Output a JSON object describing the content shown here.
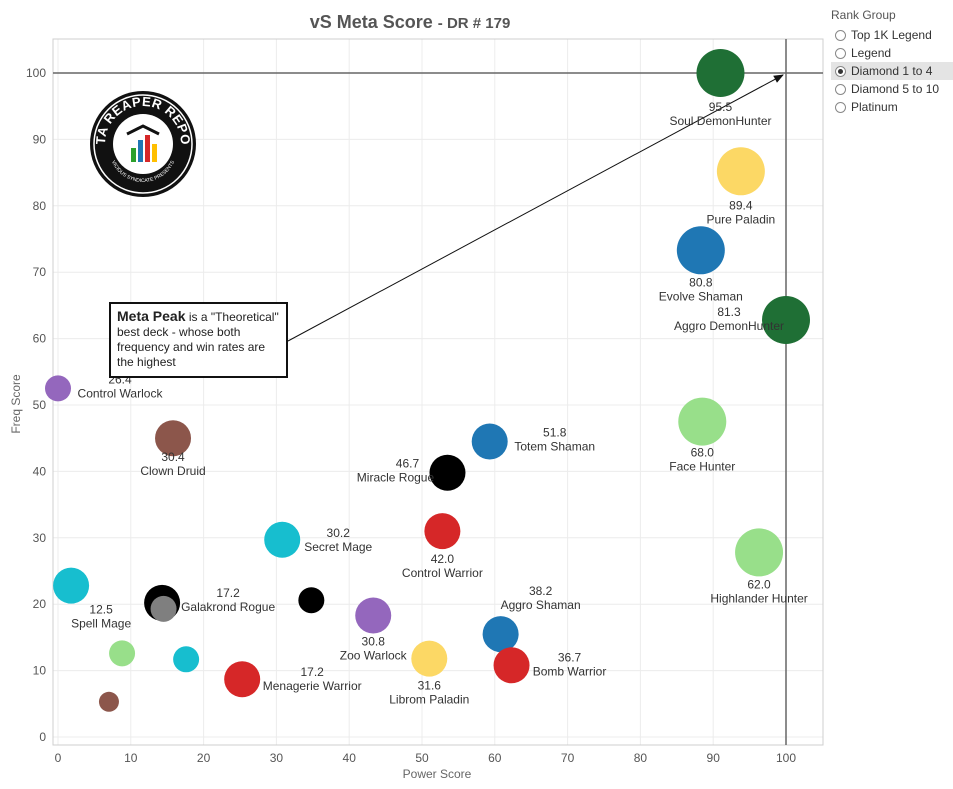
{
  "title": {
    "main": "vS Meta Score",
    "sub": "DR # 179"
  },
  "legend": {
    "title": "Rank Group",
    "items": [
      {
        "label": "Top 1K Legend",
        "selected": false
      },
      {
        "label": "Legend",
        "selected": false
      },
      {
        "label": "Diamond 1 to 4",
        "selected": true
      },
      {
        "label": "Diamond 5 to 10",
        "selected": false
      },
      {
        "label": "Platinum",
        "selected": false
      }
    ]
  },
  "annotation": {
    "heading": "Meta Peak",
    "text": "is a \"Theoretical\" best deck - whose both frequency and win rates are the highest",
    "arrow_target": [
      100,
      100
    ]
  },
  "logo": {
    "text_top": "DATA REAPER REPORT",
    "text_bottom": "VICIOUS SYNDICATE PRESENTS"
  },
  "chart_data": {
    "type": "scatter",
    "title": "vS Meta Score - DR # 179",
    "xlabel": "Power Score",
    "ylabel": "Freq Score",
    "xlim": [
      0,
      105
    ],
    "ylim": [
      0,
      105
    ],
    "xticks": [
      0,
      10,
      20,
      30,
      40,
      50,
      60,
      70,
      80,
      90,
      100
    ],
    "yticks": [
      0,
      10,
      20,
      30,
      40,
      50,
      60,
      70,
      80,
      90,
      100
    ],
    "grid": true,
    "reference_lines": {
      "x": 100,
      "y": 100
    },
    "points": [
      {
        "name": "Soul DemonHunter",
        "score": "95.5",
        "x": 91,
        "y": 100,
        "color": "#1f6f35"
      },
      {
        "name": "Pure Paladin",
        "score": "89.4",
        "x": 93.8,
        "y": 85.2,
        "color": "#fcd865"
      },
      {
        "name": "Evolve Shaman",
        "score": "80.8",
        "x": 88.3,
        "y": 73.3,
        "color": "#1f77b4"
      },
      {
        "name": "Aggro DemonHunter",
        "score": "81.3",
        "x": 100,
        "y": 62.8,
        "color": "#1f6f35"
      },
      {
        "name": "Control Warlock",
        "score": "26.4",
        "x": 0,
        "y": 52.5,
        "color": "#9467bd"
      },
      {
        "name": "Clown Druid",
        "score": "30.4",
        "x": 15.8,
        "y": 45,
        "color": "#8c564b"
      },
      {
        "name": "Face Hunter",
        "score": "68.0",
        "x": 88.5,
        "y": 47.5,
        "color": "#98df8a"
      },
      {
        "name": "Totem Shaman",
        "score": "51.8",
        "x": 59.3,
        "y": 44.5,
        "color": "#1f77b4"
      },
      {
        "name": "Miracle Rogue",
        "score": "46.7",
        "x": 53.5,
        "y": 39.8,
        "color": "#000000"
      },
      {
        "name": "Secret Mage",
        "score": "30.2",
        "x": 30.8,
        "y": 29.7,
        "color": "#17becf"
      },
      {
        "name": "Control Warrior",
        "score": "42.0",
        "x": 52.8,
        "y": 31,
        "color": "#d62728"
      },
      {
        "name": "Highlander Hunter",
        "score": "62.0",
        "x": 96.3,
        "y": 27.8,
        "color": "#98df8a"
      },
      {
        "name": "Spell Mage",
        "score": "12.5",
        "x": 1.8,
        "y": 22.8,
        "color": "#17becf"
      },
      {
        "name": "Galakrond Rogue",
        "score": "17.2",
        "x": 14.3,
        "y": 20.2,
        "color": "#000000"
      },
      {
        "name": "",
        "score": "",
        "x": 14.5,
        "y": 19.3,
        "color": "#7f7f7f"
      },
      {
        "name": "",
        "score": "",
        "x": 34.8,
        "y": 20.6,
        "color": "#000000"
      },
      {
        "name": "Zoo Warlock",
        "score": "30.8",
        "x": 43.3,
        "y": 18.3,
        "color": "#9467bd"
      },
      {
        "name": "Aggro Shaman",
        "score": "38.2",
        "x": 60.8,
        "y": 15.5,
        "color": "#1f77b4"
      },
      {
        "name": "",
        "score": "",
        "x": 8.8,
        "y": 12.6,
        "color": "#98df8a"
      },
      {
        "name": "",
        "score": "",
        "x": 17.6,
        "y": 11.7,
        "color": "#17becf"
      },
      {
        "name": "Librom Paladin",
        "score": "31.6",
        "x": 51,
        "y": 11.8,
        "color": "#fcd865"
      },
      {
        "name": "Bomb Warrior",
        "score": "36.7",
        "x": 62.3,
        "y": 10.8,
        "color": "#d62728"
      },
      {
        "name": "Menagerie Warrior",
        "score": "17.2",
        "x": 25.3,
        "y": 8.7,
        "color": "#d62728"
      },
      {
        "name": "",
        "score": "",
        "x": 7,
        "y": 5.3,
        "color": "#8c564b"
      }
    ]
  }
}
